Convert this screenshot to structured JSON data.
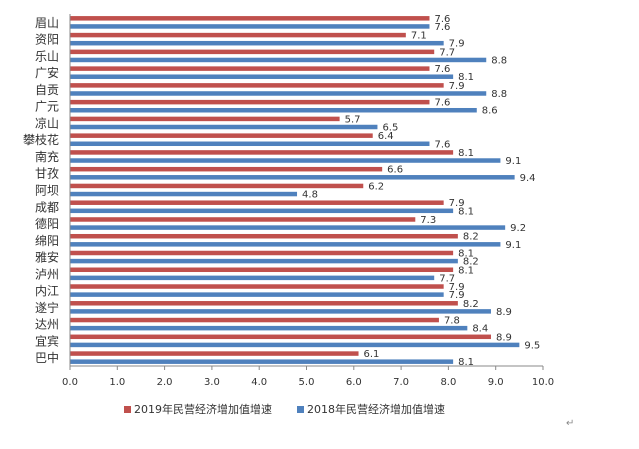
{
  "chart_data": {
    "type": "bar",
    "orientation": "horizontal",
    "categories": [
      "眉山",
      "资阳",
      "乐山",
      "广安",
      "自贡",
      "广元",
      "凉山",
      "攀枝花",
      "南充",
      "甘孜",
      "阿坝",
      "成都",
      "德阳",
      "绵阳",
      "雅安",
      "泸州",
      "内江",
      "遂宁",
      "达州",
      "宜宾",
      "巴中"
    ],
    "series": [
      {
        "name": "2019年民营经济增加值增速",
        "color": "#c0504d",
        "values": [
          7.6,
          7.1,
          7.7,
          7.6,
          7.9,
          7.6,
          5.7,
          6.4,
          8.1,
          6.6,
          6.2,
          7.9,
          7.3,
          8.2,
          8.1,
          8.1,
          7.9,
          8.2,
          7.8,
          8.9,
          6.1
        ]
      },
      {
        "name": "2018年民营经济增加值增速",
        "color": "#4f81bd",
        "values": [
          7.6,
          7.9,
          8.8,
          8.1,
          8.8,
          8.6,
          6.5,
          7.6,
          9.1,
          9.4,
          4.8,
          8.1,
          9.2,
          9.1,
          8.2,
          7.7,
          7.9,
          8.9,
          8.4,
          9.5,
          8.1
        ]
      }
    ],
    "xlim": [
      0,
      10
    ],
    "xticks": [
      "0.0",
      "1.0",
      "2.0",
      "3.0",
      "4.0",
      "5.0",
      "6.0",
      "7.0",
      "8.0",
      "9.0",
      "10.0"
    ],
    "title": "",
    "xlabel": "",
    "ylabel": "",
    "grid": false,
    "legend_position": "bottom",
    "extra_mark": "↵"
  }
}
